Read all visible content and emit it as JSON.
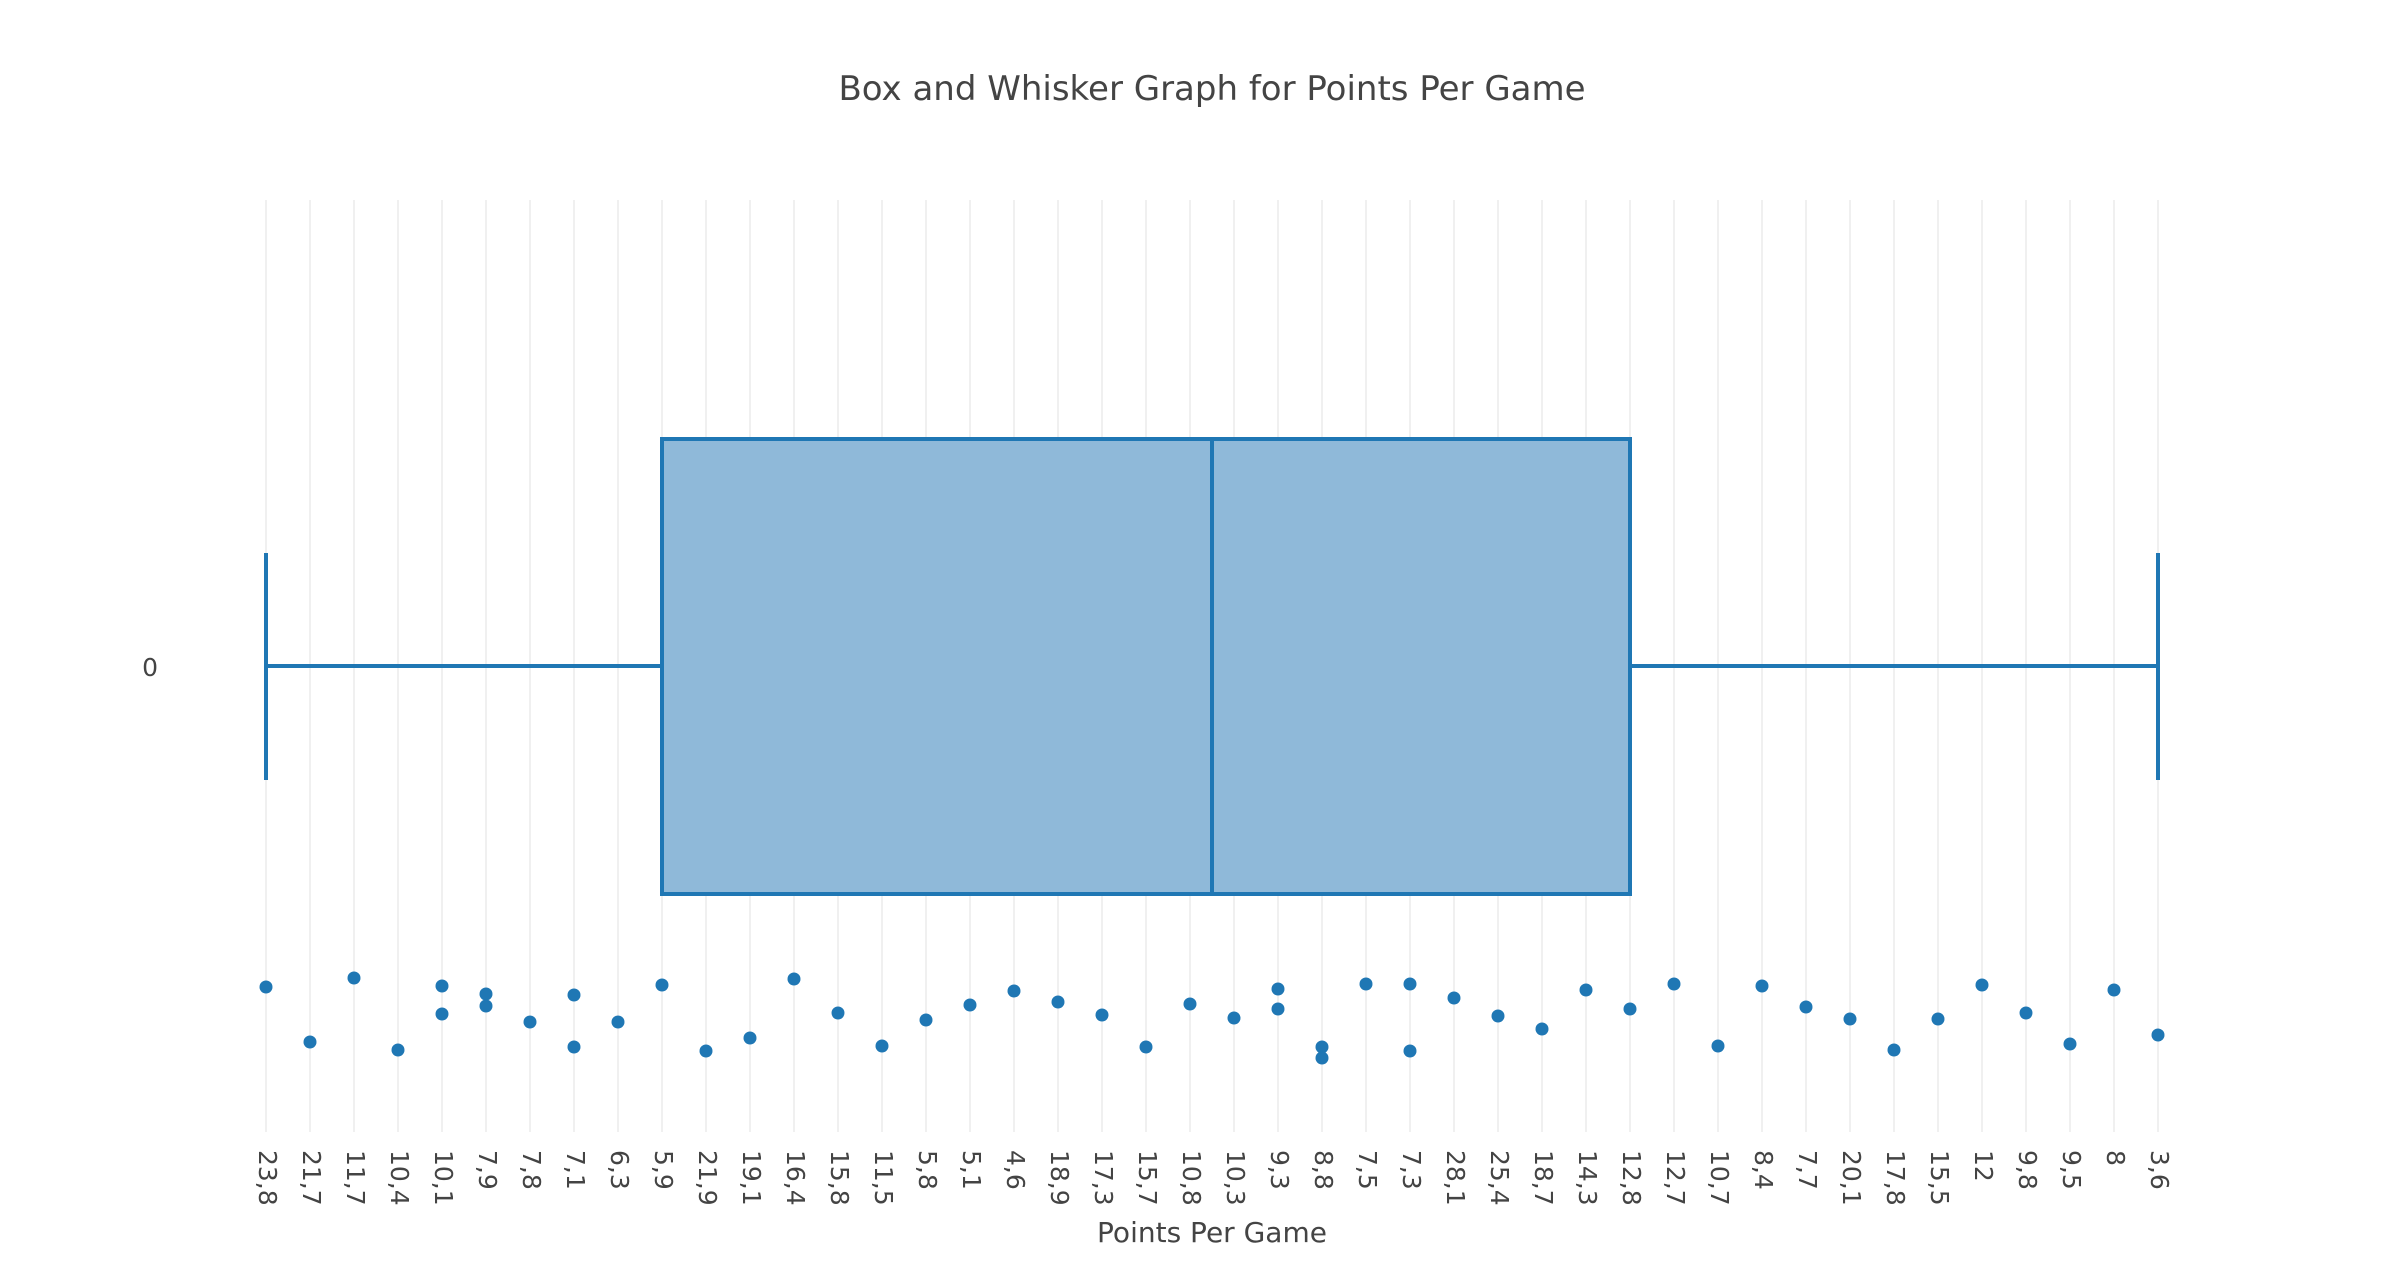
{
  "chart_data": {
    "type": "box",
    "title": "Box and Whisker Graph for Points Per Game",
    "xlabel": "Points Per Game",
    "ylabel": "",
    "orientation": "horizontal",
    "trace_label": "0",
    "x_axis_type": "category",
    "categories": [
      "23,8",
      "21,7",
      "11,7",
      "10,4",
      "10,1",
      "7,9",
      "7,8",
      "7,1",
      "6,3",
      "5,9",
      "21,9",
      "19,1",
      "16,4",
      "15,8",
      "11,5",
      "5,8",
      "5,1",
      "4,6",
      "18,9",
      "17,3",
      "15,7",
      "10,8",
      "10,3",
      "9,3",
      "8,8",
      "7,5",
      "7,3",
      "28,1",
      "25,4",
      "18,7",
      "14,3",
      "12,8",
      "12,7",
      "10,7",
      "8,4",
      "7,7",
      "20,1",
      "17,8",
      "15,5",
      "12",
      "9,8",
      "9,5",
      "8",
      "3,6"
    ],
    "box": {
      "lower_fence": "23,8",
      "q1": "5,9",
      "median_position": 21.5,
      "q3": "12,8",
      "upper_fence": "3,6"
    },
    "points": [
      {
        "x": "23,8",
        "jitter": 0.23
      },
      {
        "x": "21,7",
        "jitter": -0.32
      },
      {
        "x": "11,7",
        "jitter": 0.32
      },
      {
        "x": "10,4",
        "jitter": -0.4
      },
      {
        "x": "10,1",
        "jitter": 0.24
      },
      {
        "x": "10,1",
        "jitter": -0.04
      },
      {
        "x": "7,9",
        "jitter": 0.16
      },
      {
        "x": "7,9",
        "jitter": 0.04
      },
      {
        "x": "7,8",
        "jitter": -0.12
      },
      {
        "x": "7,1",
        "jitter": 0.15
      },
      {
        "x": "7,1",
        "jitter": -0.37
      },
      {
        "x": "6,3",
        "jitter": -0.12
      },
      {
        "x": "5,9",
        "jitter": 0.25
      },
      {
        "x": "21,9",
        "jitter": -0.41
      },
      {
        "x": "19,1",
        "jitter": -0.28
      },
      {
        "x": "16,4",
        "jitter": 0.31
      },
      {
        "x": "15,8",
        "jitter": -0.03
      },
      {
        "x": "11,5",
        "jitter": -0.36
      },
      {
        "x": "5,8",
        "jitter": -0.1
      },
      {
        "x": "5,1",
        "jitter": 0.05
      },
      {
        "x": "4,6",
        "jitter": 0.19
      },
      {
        "x": "18,9",
        "jitter": 0.08
      },
      {
        "x": "17,3",
        "jitter": -0.05
      },
      {
        "x": "15,7",
        "jitter": -0.37
      },
      {
        "x": "10,8",
        "jitter": 0.06
      },
      {
        "x": "10,3",
        "jitter": -0.08
      },
      {
        "x": "9,3",
        "jitter": 0.21
      },
      {
        "x": "9,3",
        "jitter": 0.01
      },
      {
        "x": "8,8",
        "jitter": -0.37
      },
      {
        "x": "8,8",
        "jitter": -0.48
      },
      {
        "x": "7,5",
        "jitter": 0.26
      },
      {
        "x": "7,3",
        "jitter": 0.26
      },
      {
        "x": "7,3",
        "jitter": -0.41
      },
      {
        "x": "28,1",
        "jitter": 0.12
      },
      {
        "x": "25,4",
        "jitter": -0.06
      },
      {
        "x": "18,7",
        "jitter": -0.19
      },
      {
        "x": "14,3",
        "jitter": 0.2
      },
      {
        "x": "12,8",
        "jitter": 0.01
      },
      {
        "x": "12,7",
        "jitter": 0.26
      },
      {
        "x": "10,7",
        "jitter": -0.36
      },
      {
        "x": "8,4",
        "jitter": 0.24
      },
      {
        "x": "7,7",
        "jitter": 0.03
      },
      {
        "x": "20,1",
        "jitter": -0.09
      },
      {
        "x": "17,8",
        "jitter": -0.4
      },
      {
        "x": "15,5",
        "jitter": -0.09
      },
      {
        "x": "12",
        "jitter": 0.25
      },
      {
        "x": "9,8",
        "jitter": -0.03
      },
      {
        "x": "9,5",
        "jitter": -0.34
      },
      {
        "x": "8",
        "jitter": 0.2
      },
      {
        "x": "3,6",
        "jitter": -0.25
      }
    ],
    "grid": true,
    "legend": "none",
    "colors": {
      "line": "#1f77b4",
      "fill": "#8fb9d9",
      "marker": "#1f77b4",
      "grid": "#ebebeb",
      "text": "#444444"
    }
  }
}
